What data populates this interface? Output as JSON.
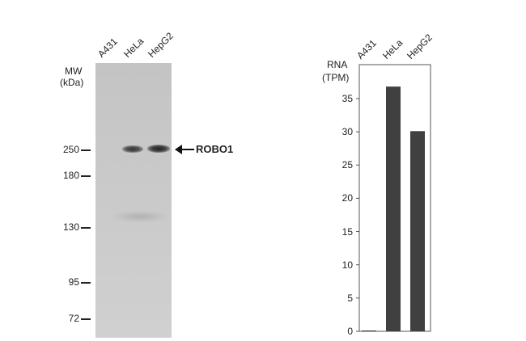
{
  "blot": {
    "mw_label_line1": "MW",
    "mw_label_line2": "(kDa)",
    "lanes": [
      "A431",
      "HeLa",
      "HepG2"
    ],
    "markers": [
      "250",
      "180",
      "130",
      "95",
      "72"
    ],
    "target_label": "ROBO1"
  },
  "chart_data": {
    "type": "bar",
    "categories": [
      "A431",
      "HeLa",
      "HepG2"
    ],
    "values": [
      0.1,
      36.8,
      30.1
    ],
    "title": "",
    "ylabel_line1": "RNA",
    "ylabel_line2": "(TPM)",
    "xlabel": "",
    "ylim": [
      0,
      40
    ],
    "yticks": [
      "0",
      "5",
      "10",
      "15",
      "20",
      "25",
      "30",
      "35"
    ],
    "bar_color": "#404040"
  }
}
